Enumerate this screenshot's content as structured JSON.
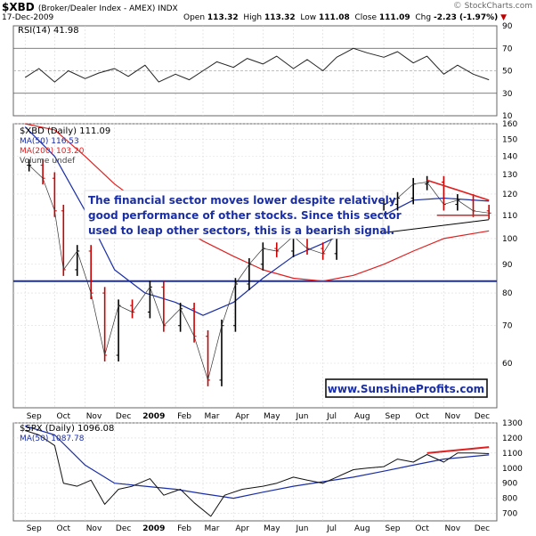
{
  "header": {
    "symbol": "$XBD",
    "symbol_desc": "(Broker/Dealer Index - AMEX) INDX",
    "date": "17-Dec-2009",
    "open_label": "Open",
    "open_value": "113.32",
    "high_label": "High",
    "high_value": "113.32",
    "low_label": "Low",
    "low_value": "111.08",
    "close_label": "Close",
    "close_value": "111.09",
    "chg_label": "Chg",
    "chg_value": "-2.23 (-1.97%)",
    "chg_marker": "▼",
    "brand_symbol": "©",
    "brand": "StockCharts.com"
  },
  "colors": {
    "price_up": "#000000",
    "price_down": "#cc0000",
    "ma50": "#1a2ea6",
    "ma200": "#e02020",
    "support_line": "#1a2ea6",
    "annotation_text": "#1a2ea6",
    "trend_line": "#e02020"
  },
  "annotation": {
    "text_lines": [
      "The financial sector moves lower despite relatively",
      "good performance of other stocks. Since this sector",
      "used to leap other sectors, this is a bearish signal."
    ],
    "watermark": "www.SunshineProfits.com"
  },
  "chart_data": [
    {
      "type": "line",
      "panel": "rsi",
      "legend": "RSI(14) 41.98",
      "ylim": [
        10,
        90
      ],
      "y_ticks": [
        10,
        30,
        50,
        70,
        90
      ],
      "reference_lines": [
        30,
        50,
        70
      ],
      "x": [
        "2008-09-01",
        "2008-09-15",
        "2008-10-01",
        "2008-10-15",
        "2008-11-01",
        "2008-11-15",
        "2008-12-01",
        "2008-12-15",
        "2009-01-01",
        "2009-01-15",
        "2009-02-01",
        "2009-02-15",
        "2009-03-01",
        "2009-03-15",
        "2009-04-01",
        "2009-04-15",
        "2009-05-01",
        "2009-05-15",
        "2009-06-01",
        "2009-06-15",
        "2009-07-01",
        "2009-07-15",
        "2009-08-01",
        "2009-08-15",
        "2009-09-01",
        "2009-09-15",
        "2009-10-01",
        "2009-10-15",
        "2009-11-01",
        "2009-11-15",
        "2009-12-01",
        "2009-12-17"
      ],
      "values": [
        44,
        52,
        40,
        50,
        43,
        48,
        52,
        45,
        55,
        40,
        47,
        42,
        50,
        58,
        53,
        61,
        56,
        63,
        52,
        60,
        50,
        62,
        70,
        66,
        62,
        67,
        57,
        63,
        47,
        55,
        47,
        42
      ]
    },
    {
      "type": "candlestick",
      "panel": "price",
      "legend": [
        "$XBD (Daily) 111.09",
        "MA(50) 116.53",
        "MA(200) 103.20",
        "Volume undef"
      ],
      "ylim": [
        50,
        160
      ],
      "y_scale": "log",
      "y_ticks": [
        60,
        70,
        80,
        90,
        100,
        110,
        120,
        130,
        140,
        150,
        160
      ],
      "x_tick_labels": [
        "Sep",
        "Oct",
        "Nov",
        "Dec",
        "2009",
        "Feb",
        "Mar",
        "Apr",
        "May",
        "Jun",
        "Jul",
        "Aug",
        "Sep",
        "Oct",
        "Nov",
        "Dec"
      ],
      "close": {
        "x": [
          "2008-09-05",
          "2008-09-19",
          "2008-10-01",
          "2008-10-10",
          "2008-10-24",
          "2008-11-07",
          "2008-11-21",
          "2008-12-05",
          "2008-12-19",
          "2009-01-06",
          "2009-01-20",
          "2009-02-06",
          "2009-02-20",
          "2009-03-06",
          "2009-03-20",
          "2009-04-03",
          "2009-04-17",
          "2009-05-01",
          "2009-05-15",
          "2009-06-01",
          "2009-06-15",
          "2009-07-01",
          "2009-07-15"
        ],
        "values": [
          135,
          128,
          112,
          88,
          95,
          80,
          62,
          76,
          74,
          82,
          70,
          75,
          67,
          56,
          70,
          83,
          90,
          96,
          95,
          101,
          96,
          94,
          103
        ]
      },
      "close_after_gap": {
        "x": [
          "2009-09-01",
          "2009-09-15",
          "2009-10-01",
          "2009-10-15",
          "2009-11-01",
          "2009-11-15",
          "2009-12-01",
          "2009-12-17"
        ],
        "values": [
          115,
          118,
          125,
          126,
          115,
          117,
          112,
          111
        ]
      },
      "ma50": {
        "x": [
          "2008-09-01",
          "2008-10-01",
          "2008-11-01",
          "2008-12-01",
          "2009-01-01",
          "2009-02-01",
          "2009-03-01",
          "2009-04-01",
          "2009-05-01",
          "2009-06-01",
          "2009-07-01",
          "2009-08-01",
          "2009-09-01",
          "2009-10-01",
          "2009-11-01",
          "2009-12-17"
        ],
        "values": [
          158,
          140,
          112,
          88,
          80,
          77,
          73,
          77,
          85,
          93,
          98,
          104,
          110,
          117,
          118,
          116.53
        ]
      },
      "ma200": {
        "x": [
          "2008-09-01",
          "2008-10-01",
          "2008-11-01",
          "2008-12-01",
          "2009-01-01",
          "2009-02-01",
          "2009-03-01",
          "2009-04-01",
          "2009-05-01",
          "2009-06-01",
          "2009-07-01",
          "2009-08-01",
          "2009-09-01",
          "2009-10-01",
          "2009-11-01",
          "2009-12-17"
        ],
        "values": [
          160,
          156,
          140,
          125,
          114,
          106,
          99,
          93,
          88,
          85,
          84,
          86,
          90,
          95,
          100,
          103.2
        ]
      },
      "support_level": 84,
      "trend_lines": [
        {
          "from": {
            "x": "2009-10-15",
            "y": 127
          },
          "to": {
            "x": "2009-12-17",
            "y": 117
          },
          "color": "red"
        },
        {
          "from": {
            "x": "2009-10-25",
            "y": 110
          },
          "to": {
            "x": "2009-12-17",
            "y": 110
          },
          "color": "red"
        },
        {
          "from": {
            "x": "2009-07-15",
            "y": 100
          },
          "to": {
            "x": "2009-12-17",
            "y": 108
          },
          "color": "black"
        }
      ]
    },
    {
      "type": "line",
      "panel": "spx",
      "legend": [
        "$SPX (Daily) 1096.08",
        "MA(50) 1087.78"
      ],
      "ylim": [
        650,
        1300
      ],
      "y_ticks": [
        700,
        800,
        900,
        1000,
        1100,
        1200,
        1300
      ],
      "x_tick_labels": [
        "Sep",
        "Oct",
        "Nov",
        "Dec",
        "2009",
        "Feb",
        "Mar",
        "Apr",
        "May",
        "Jun",
        "Jul",
        "Aug",
        "Sep",
        "Oct",
        "Nov",
        "Dec"
      ],
      "x": [
        "2008-09-01",
        "2008-09-15",
        "2008-10-01",
        "2008-10-10",
        "2008-10-24",
        "2008-11-07",
        "2008-11-21",
        "2008-12-05",
        "2008-12-19",
        "2009-01-06",
        "2009-01-20",
        "2009-02-06",
        "2009-02-20",
        "2009-03-09",
        "2009-03-23",
        "2009-04-10",
        "2009-05-01",
        "2009-05-15",
        "2009-06-01",
        "2009-06-15",
        "2009-07-01",
        "2009-07-15",
        "2009-08-01",
        "2009-08-15",
        "2009-09-01",
        "2009-09-15",
        "2009-10-01",
        "2009-10-15",
        "2009-11-01",
        "2009-11-15",
        "2009-12-01",
        "2009-12-17"
      ],
      "values": [
        1250,
        1220,
        1150,
        900,
        880,
        920,
        760,
        860,
        880,
        930,
        820,
        860,
        770,
        680,
        820,
        860,
        880,
        900,
        940,
        920,
        900,
        940,
        990,
        1000,
        1010,
        1060,
        1040,
        1090,
        1040,
        1100,
        1100,
        1096
      ],
      "ma50": {
        "x": [
          "2008-09-01",
          "2008-10-01",
          "2008-11-01",
          "2008-12-01",
          "2009-01-01",
          "2009-02-01",
          "2009-03-01",
          "2009-04-01",
          "2009-05-01",
          "2009-06-01",
          "2009-07-01",
          "2009-08-01",
          "2009-09-01",
          "2009-10-01",
          "2009-11-01",
          "2009-12-17"
        ],
        "values": [
          1280,
          1220,
          1020,
          900,
          880,
          860,
          830,
          800,
          840,
          880,
          910,
          940,
          980,
          1020,
          1060,
          1087.78
        ]
      },
      "trend_line": {
        "from": {
          "x": "2009-10-15",
          "y": 1100
        },
        "to": {
          "x": "2009-12-17",
          "y": 1140
        },
        "color": "red"
      }
    }
  ]
}
